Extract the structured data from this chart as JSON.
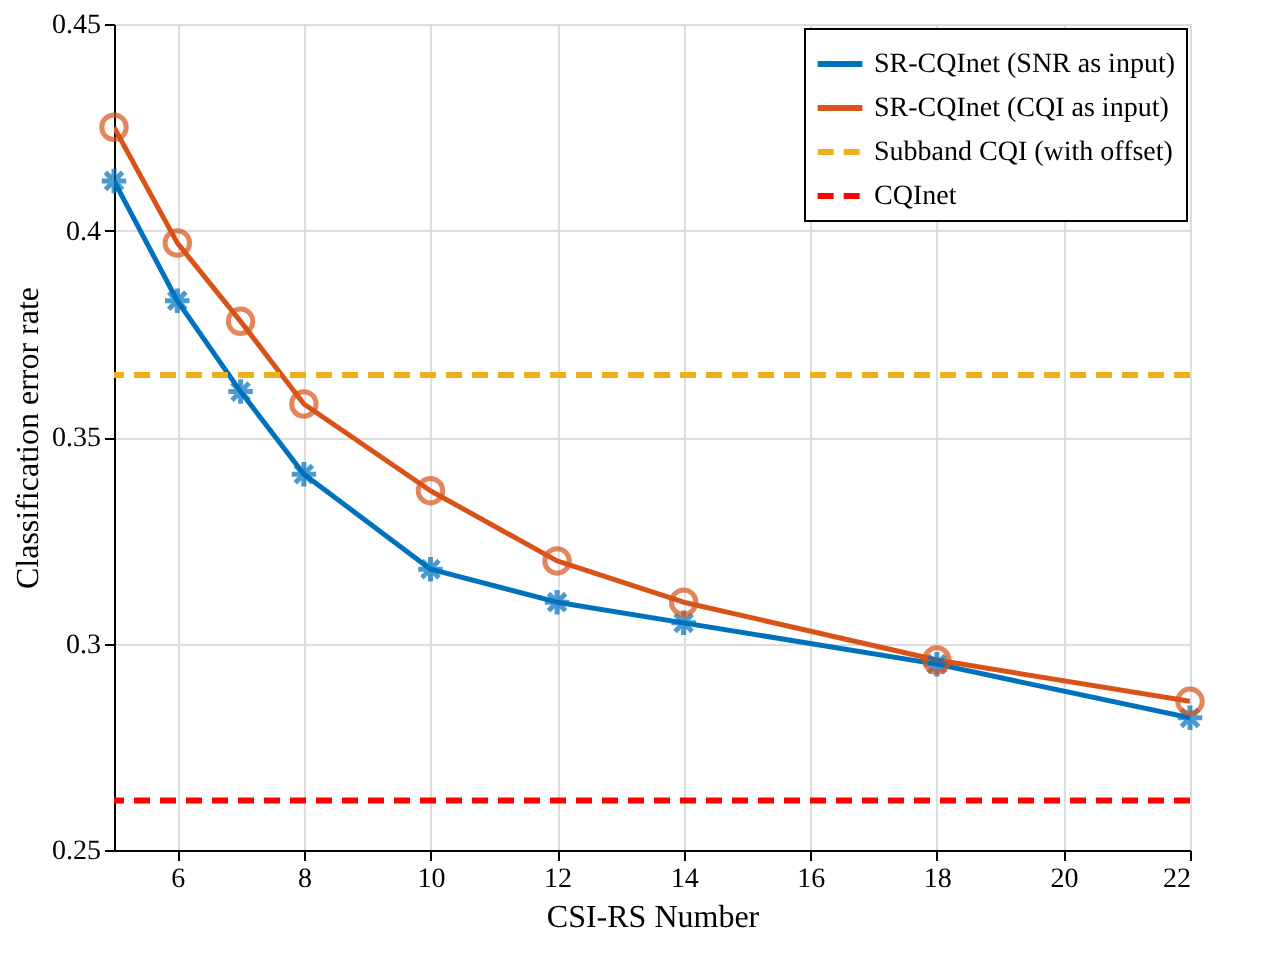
{
  "chart_data": {
    "type": "line",
    "xlabel": "CSI-RS Number",
    "ylabel": "Classification error rate",
    "x": [
      5,
      6,
      7,
      8,
      10,
      12,
      14,
      18,
      22
    ],
    "series": [
      {
        "name": "SR-CQInet (SNR as input)",
        "color": "#0072bd",
        "marker": "cross",
        "values": [
          0.412,
          0.383,
          0.361,
          0.341,
          0.318,
          0.31,
          0.305,
          0.295,
          0.282
        ]
      },
      {
        "name": "SR-CQInet (CQI as input)",
        "color": "#d95319",
        "marker": "circle",
        "values": [
          0.425,
          0.397,
          0.378,
          0.358,
          0.337,
          0.32,
          0.31,
          0.296,
          0.286
        ]
      }
    ],
    "ref_lines": [
      {
        "axis": "y",
        "value": 0.365,
        "label": "Subband CQI (with offset)",
        "color": "#edb120",
        "line_style": "dashed"
      },
      {
        "axis": "y",
        "value": 0.262,
        "label": "CQInet",
        "color": "#ff0000",
        "line_style": "dashed"
      }
    ],
    "xlim": [
      5,
      22
    ],
    "xticks": [
      6,
      8,
      10,
      12,
      14,
      16,
      18,
      20,
      22
    ],
    "ylim": [
      0.25,
      0.45
    ],
    "yticks": [
      0.25,
      0.3,
      0.35,
      0.4,
      0.45
    ],
    "grid": true,
    "legend": "top right",
    "line_style": "solid"
  }
}
